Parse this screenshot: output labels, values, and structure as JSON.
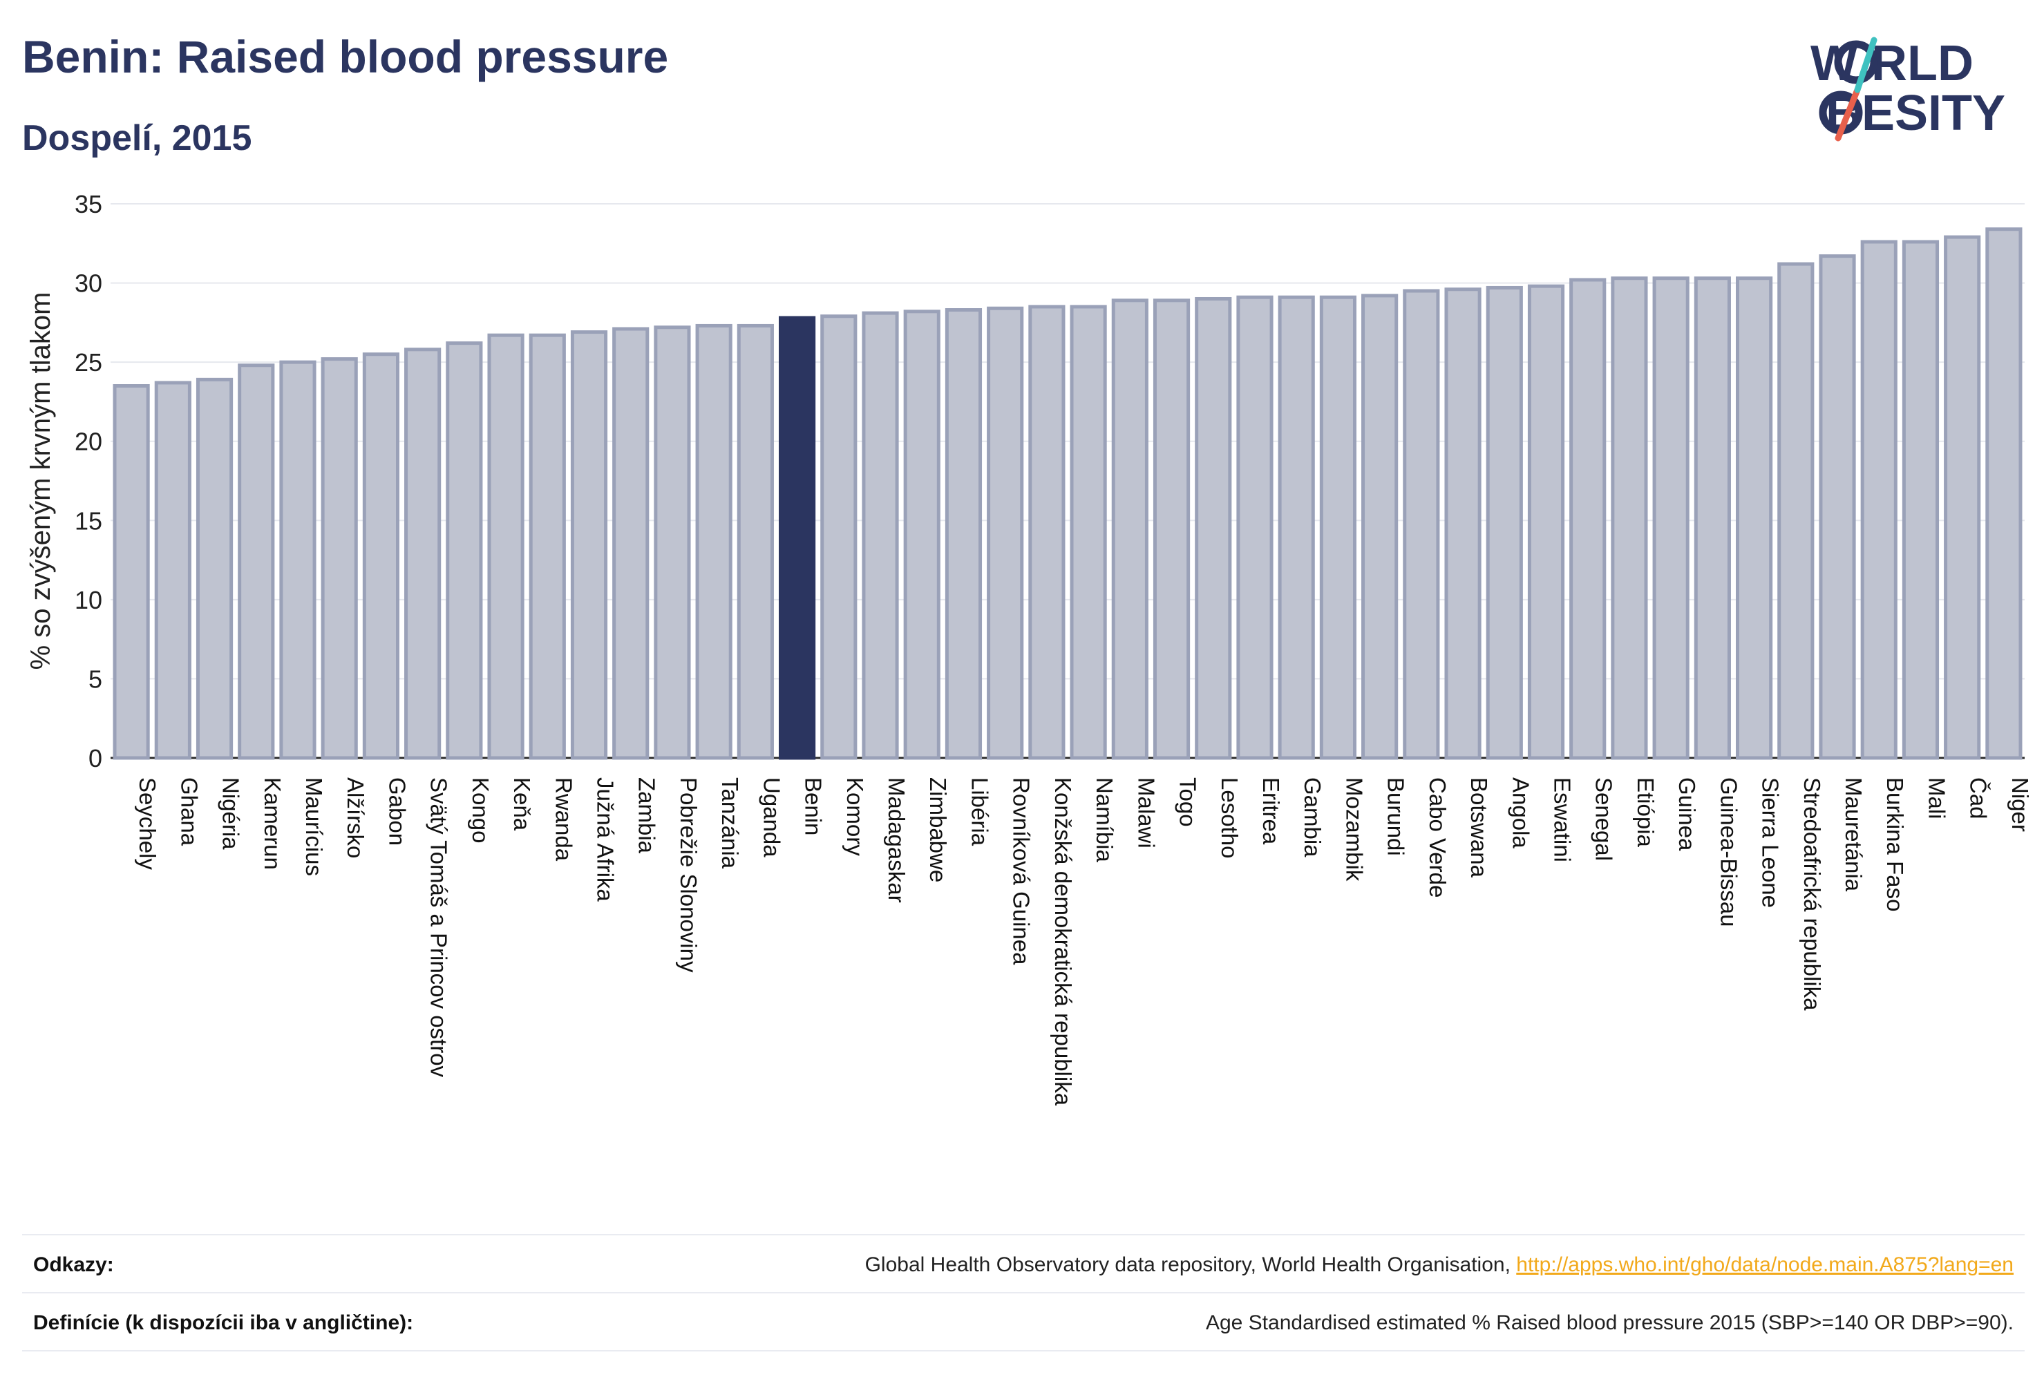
{
  "header": {
    "title": "Benin: Raised blood pressure",
    "subtitle": "Dospelí, 2015"
  },
  "logo": {
    "line1": "W RLD",
    "line2": "BESITY",
    "brand_color": "#2b3560",
    "slash_colors": [
      "#e8604c",
      "#3fc1c0"
    ]
  },
  "chart_data": {
    "type": "bar",
    "ylabel": "% so zvýšeným krvným tlakom",
    "ylim": [
      0,
      35
    ],
    "yticks": [
      0,
      5,
      10,
      15,
      20,
      25,
      30,
      35
    ],
    "grid": true,
    "highlight": "Benin",
    "colors": {
      "bar": "#bfc3d0",
      "bar_edge": "#9aa1b8",
      "highlight": "#2b3560"
    },
    "categories": [
      "Seychely",
      "Ghana",
      "Nigéria",
      "Kamerun",
      "Maurícius",
      "Alžírsko",
      "Gabon",
      "Svätý Tomáš a Princov ostrov",
      "Kongo",
      "Keňa",
      "Rwanda",
      "Južná Afrika",
      "Zambia",
      "Pobrežie Slonoviny",
      "Tanzánia",
      "Uganda",
      "Benin",
      "Komory",
      "Madagaskar",
      "Zimbabwe",
      "Libéria",
      "Rovníková Guinea",
      "Konžská demokratická republika",
      "Namíbia",
      "Malawi",
      "Togo",
      "Lesotho",
      "Eritrea",
      "Gambia",
      "Mozambik",
      "Burundi",
      "Cabo Verde",
      "Botswana",
      "Angola",
      "Eswatini",
      "Senegal",
      "Etiópia",
      "Guinea",
      "Guinea-Bissau",
      "Sierra Leone",
      "Stredoafrická republika",
      "Mauretánia",
      "Burkina Faso",
      "Mali",
      "Čad",
      "Niger"
    ],
    "values": [
      23.5,
      23.7,
      23.9,
      24.8,
      25.0,
      25.2,
      25.5,
      25.8,
      26.2,
      26.7,
      26.7,
      26.9,
      27.1,
      27.2,
      27.3,
      27.3,
      27.8,
      27.9,
      28.1,
      28.2,
      28.3,
      28.4,
      28.5,
      28.5,
      28.9,
      28.9,
      29.0,
      29.1,
      29.1,
      29.1,
      29.2,
      29.5,
      29.6,
      29.7,
      29.8,
      30.2,
      30.3,
      30.3,
      30.3,
      30.3,
      31.2,
      31.7,
      32.6,
      32.6,
      32.9,
      33.4
    ]
  },
  "footer": {
    "sources_label": "Odkazy:",
    "sources_text": "Global Health Observatory data repository, World Health Organisation, ",
    "sources_link": "http://apps.who.int/gho/data/node.main.A875?lang=en",
    "definition_label": "Definície (k dispozícii iba v angličtine):",
    "definition_text": "Age Standardised estimated % Raised blood pressure 2015 (SBP>=140 OR DBP>=90)."
  }
}
